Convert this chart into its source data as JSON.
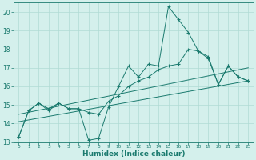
{
  "x": [
    0,
    1,
    2,
    3,
    4,
    5,
    6,
    7,
    8,
    9,
    10,
    11,
    12,
    13,
    14,
    15,
    16,
    17,
    18,
    19,
    20,
    21,
    22,
    23
  ],
  "line1": [
    13.3,
    14.7,
    15.1,
    14.7,
    15.1,
    14.8,
    14.8,
    13.1,
    13.2,
    14.9,
    16.0,
    17.1,
    16.5,
    17.2,
    17.1,
    20.3,
    19.6,
    18.9,
    17.9,
    17.5,
    16.1,
    17.1,
    16.5,
    16.3
  ],
  "line2": [
    13.3,
    14.7,
    15.1,
    14.8,
    15.1,
    14.8,
    14.8,
    14.6,
    14.5,
    15.2,
    15.5,
    16.0,
    16.3,
    16.5,
    16.9,
    17.1,
    17.2,
    18.0,
    17.9,
    17.6,
    16.1,
    17.1,
    16.5,
    16.3
  ],
  "line3_x": [
    0,
    23
  ],
  "line3_y": [
    14.5,
    17.0
  ],
  "line4_x": [
    0,
    23
  ],
  "line4_y": [
    14.1,
    16.3
  ],
  "bg_color": "#d4f0ec",
  "line_color": "#1a7a6e",
  "grid_color": "#b0dbd5",
  "xlabel": "Humidex (Indice chaleur)",
  "xlim": [
    -0.5,
    23.5
  ],
  "ylim": [
    13,
    20.5
  ],
  "yticks": [
    13,
    14,
    15,
    16,
    17,
    18,
    19,
    20
  ],
  "xticks": [
    0,
    1,
    2,
    3,
    4,
    5,
    6,
    7,
    8,
    9,
    10,
    11,
    12,
    13,
    14,
    15,
    16,
    17,
    18,
    19,
    20,
    21,
    22,
    23
  ],
  "xlabel_fontsize": 6.5,
  "ytick_fontsize": 5.5,
  "xtick_fontsize": 4.2
}
